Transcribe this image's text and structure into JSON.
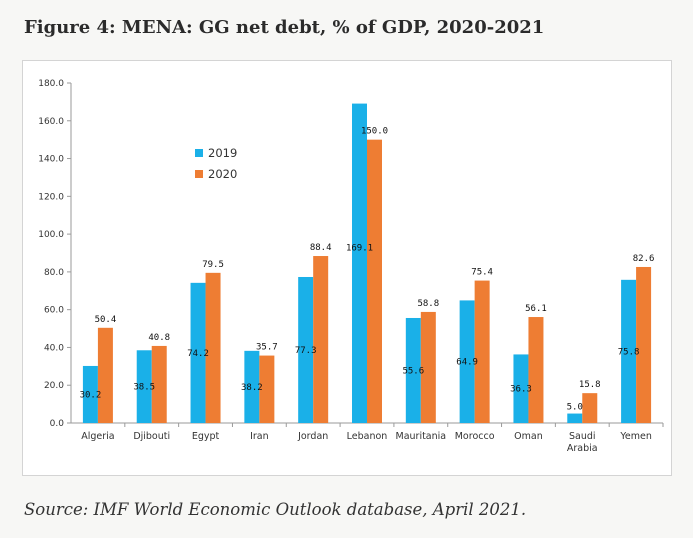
{
  "figure": {
    "title": "Figure 4: MENA: GG net debt, % of GDP, 2020-2021",
    "source": "Source: IMF World Economic Outlook database, April 2021."
  },
  "chart_data": {
    "type": "bar",
    "categories": [
      [
        "Algeria"
      ],
      [
        "Djibouti"
      ],
      [
        "Egypt"
      ],
      [
        "Iran"
      ],
      [
        "Jordan"
      ],
      [
        "Lebanon"
      ],
      [
        "Mauritania"
      ],
      [
        "Morocco"
      ],
      [
        "Oman"
      ],
      [
        "Saudi",
        "Arabia"
      ],
      [
        "Yemen"
      ]
    ],
    "series": [
      {
        "name": "2019",
        "color": "#1ab0e8",
        "values": [
          30.2,
          38.5,
          74.2,
          38.2,
          77.3,
          169.1,
          55.6,
          64.9,
          36.3,
          5.0,
          75.8
        ],
        "labels": [
          "30.2",
          "38.5",
          "74.2",
          "38.2",
          "77.3",
          "169.1",
          "55.6",
          "64.9",
          "36.3",
          "5.0",
          "75.8"
        ]
      },
      {
        "name": "2020",
        "color": "#ee7d33",
        "values": [
          50.4,
          40.8,
          79.5,
          35.7,
          88.4,
          150.0,
          58.8,
          75.4,
          56.1,
          15.8,
          82.6
        ],
        "labels": [
          "50.4",
          "40.8",
          "79.5",
          "35.7",
          "88.4",
          "150.0",
          "58.8",
          "75.4",
          "56.1",
          "15.8",
          "82.6"
        ]
      }
    ],
    "ylim": [
      0,
      180
    ],
    "yticks": [
      0,
      20,
      40,
      60,
      80,
      100,
      120,
      140,
      160,
      180
    ],
    "ytick_labels": [
      "0.0",
      "20.0",
      "40.0",
      "60.0",
      "80.0",
      "100.0",
      "120.0",
      "140.0",
      "160.0",
      "180.0"
    ],
    "grid": false,
    "legend": "upper-left inside plot"
  }
}
